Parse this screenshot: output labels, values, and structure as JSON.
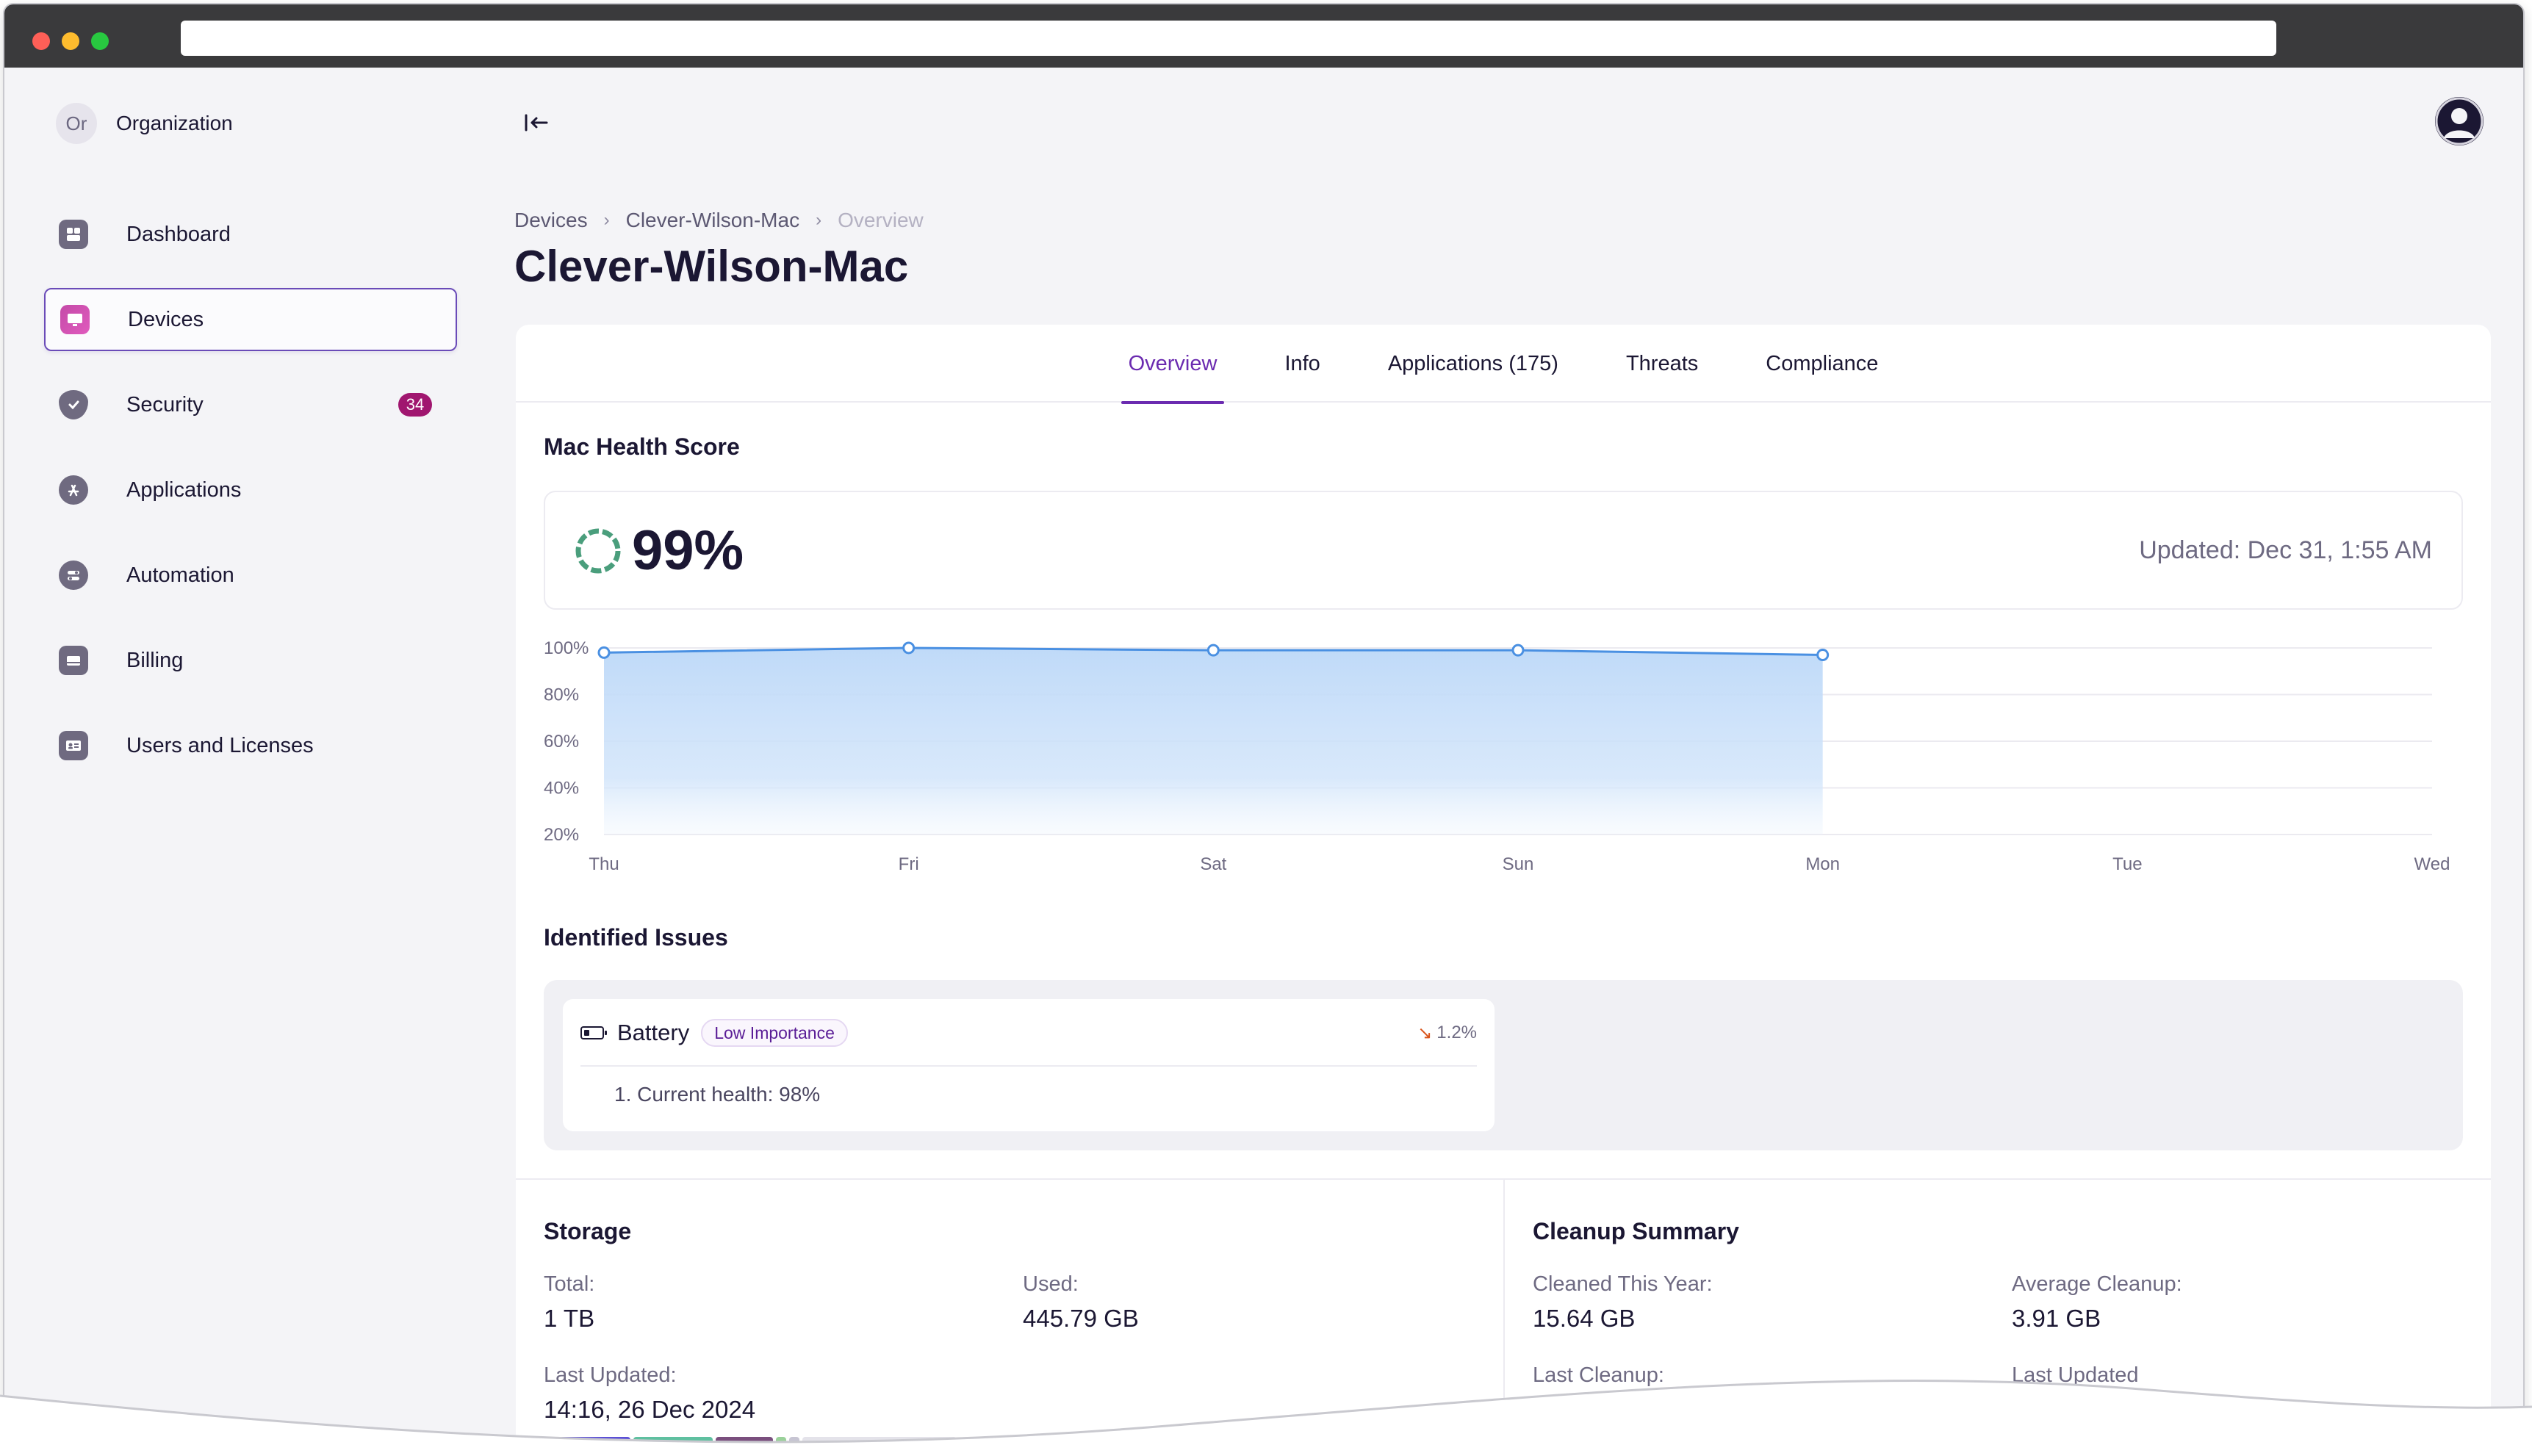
{
  "organization": {
    "avatar_initials": "Or",
    "name": "Organization"
  },
  "sidebar": {
    "items": [
      {
        "label": "Dashboard",
        "icon": "dashboard-icon"
      },
      {
        "label": "Devices",
        "icon": "monitor-icon",
        "active": true
      },
      {
        "label": "Security",
        "icon": "shield-check-icon",
        "badge": "34"
      },
      {
        "label": "Applications",
        "icon": "app-store-icon"
      },
      {
        "label": "Automation",
        "icon": "toggles-icon"
      },
      {
        "label": "Billing",
        "icon": "card-icon"
      },
      {
        "label": "Users and Licenses",
        "icon": "id-card-icon"
      }
    ]
  },
  "header": {
    "breadcrumb": [
      "Devices",
      "Clever-Wilson-Mac",
      "Overview"
    ],
    "title": "Clever-Wilson-Mac"
  },
  "tabs": [
    "Overview",
    "Info",
    "Applications (175)",
    "Threats",
    "Compliance"
  ],
  "health": {
    "title": "Mac Health Score",
    "score": "99%",
    "updated": "Updated: Dec 31, 1:55 AM"
  },
  "chart_data": {
    "type": "area",
    "x": [
      "Thu",
      "Fri",
      "Sat",
      "Sun",
      "Mon",
      "Tue",
      "Wed"
    ],
    "values": [
      98,
      100,
      99,
      99,
      97,
      null,
      null
    ],
    "yticks": [
      "100%",
      "80%",
      "60%",
      "40%",
      "20%"
    ],
    "ylim": [
      20,
      100
    ],
    "color": "#4a90e2",
    "fill": "#bcd8f8",
    "grid": true
  },
  "issues": {
    "title": "Identified Issues",
    "items": [
      {
        "name": "Battery",
        "importance": "Low Importance",
        "trend": "1.2%",
        "details": [
          "1. Current health: 98%"
        ]
      }
    ]
  },
  "storage": {
    "title": "Storage",
    "total_label": "Total:",
    "total_value": "1 TB",
    "used_label": "Used:",
    "used_value": "445.79 GB",
    "last_updated_label": "Last Updated:",
    "last_updated_value": "14:16, 26 Dec 2024",
    "bar_colors": [
      "#5b4fd6",
      "#5fc0a0",
      "#7a4f7e",
      "#9ad19a",
      "#c7c5d3",
      "#e4e3ea"
    ]
  },
  "cleanup": {
    "title": "Cleanup Summary",
    "cleaned_label": "Cleaned This Year:",
    "cleaned_value": "15.64 GB",
    "average_label": "Average Cleanup:",
    "average_value": "3.91 GB",
    "last_cleanup_label": "Last Cleanup:",
    "last_updated_label": "Last Updated"
  }
}
